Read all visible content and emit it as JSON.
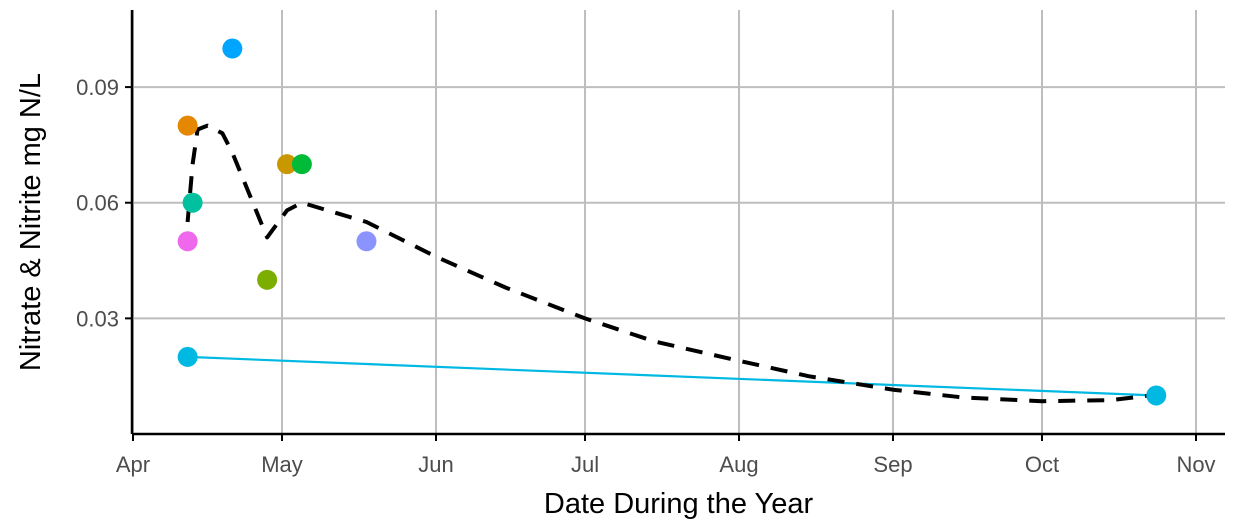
{
  "chart_data": {
    "type": "scatter",
    "title": "",
    "xlabel": "Date During the Year",
    "ylabel": "Nitrate & Nitrite mg N/L",
    "x_type": "date",
    "xlim": [
      "2023-04-01",
      "2023-11-01"
    ],
    "ylim": [
      0,
      0.11
    ],
    "grid": true,
    "legend": "none",
    "x_ticks": [
      {
        "label": "Apr",
        "value": "2023-04-01"
      },
      {
        "label": "May",
        "value": "2023-05-01"
      },
      {
        "label": "Jun",
        "value": "2023-06-01"
      },
      {
        "label": "Jul",
        "value": "2023-07-01"
      },
      {
        "label": "Aug",
        "value": "2023-08-01"
      },
      {
        "label": "Sep",
        "value": "2023-09-01"
      },
      {
        "label": "Oct",
        "value": "2023-10-01"
      },
      {
        "label": "Nov",
        "value": "2023-11-01"
      }
    ],
    "y_ticks": [
      {
        "label": "0.03",
        "value": 0.03
      },
      {
        "label": "0.06",
        "value": 0.06
      },
      {
        "label": "0.09",
        "value": 0.09
      }
    ],
    "points": [
      {
        "x": "2023-04-12",
        "y": 0.08,
        "color": "#E58700"
      },
      {
        "x": "2023-04-12",
        "y": 0.05,
        "color": "#EF67EB"
      },
      {
        "x": "2023-04-12",
        "y": 0.02,
        "color": "#00B9E3"
      },
      {
        "x": "2023-04-13",
        "y": 0.06,
        "color": "#00C19F"
      },
      {
        "x": "2023-04-21",
        "y": 0.1,
        "color": "#00A5FF"
      },
      {
        "x": "2023-04-28",
        "y": 0.04,
        "color": "#7CAE00"
      },
      {
        "x": "2023-05-02",
        "y": 0.07,
        "color": "#C99800"
      },
      {
        "x": "2023-05-05",
        "y": 0.07,
        "color": "#00BA38"
      },
      {
        "x": "2023-05-18",
        "y": 0.05,
        "color": "#8B93FF"
      },
      {
        "x": "2023-10-24",
        "y": 0.01,
        "color": "#00B9E3"
      }
    ],
    "series": [
      {
        "color": "#00B9E3",
        "style": "solid",
        "points": [
          {
            "x": "2023-04-12",
            "y": 0.02
          },
          {
            "x": "2023-10-24",
            "y": 0.01
          }
        ]
      },
      {
        "color": "#000000",
        "style": "dashed",
        "points": [
          {
            "x": "2023-04-12",
            "y": 0.055
          },
          {
            "x": "2023-04-13",
            "y": 0.07
          },
          {
            "x": "2023-04-14",
            "y": 0.079
          },
          {
            "x": "2023-04-16",
            "y": 0.08
          },
          {
            "x": "2023-04-19",
            "y": 0.078
          },
          {
            "x": "2023-04-21",
            "y": 0.073
          },
          {
            "x": "2023-04-28",
            "y": 0.051
          },
          {
            "x": "2023-05-02",
            "y": 0.058
          },
          {
            "x": "2023-05-05",
            "y": 0.06
          },
          {
            "x": "2023-05-18",
            "y": 0.055
          },
          {
            "x": "2023-06-01",
            "y": 0.046
          },
          {
            "x": "2023-06-15",
            "y": 0.038
          },
          {
            "x": "2023-07-01",
            "y": 0.03
          },
          {
            "x": "2023-07-15",
            "y": 0.024
          },
          {
            "x": "2023-08-01",
            "y": 0.019
          },
          {
            "x": "2023-08-15",
            "y": 0.015
          },
          {
            "x": "2023-09-01",
            "y": 0.0115
          },
          {
            "x": "2023-09-15",
            "y": 0.0095
          },
          {
            "x": "2023-10-01",
            "y": 0.0085
          },
          {
            "x": "2023-10-15",
            "y": 0.0088
          },
          {
            "x": "2023-10-24",
            "y": 0.0102
          }
        ]
      }
    ]
  }
}
